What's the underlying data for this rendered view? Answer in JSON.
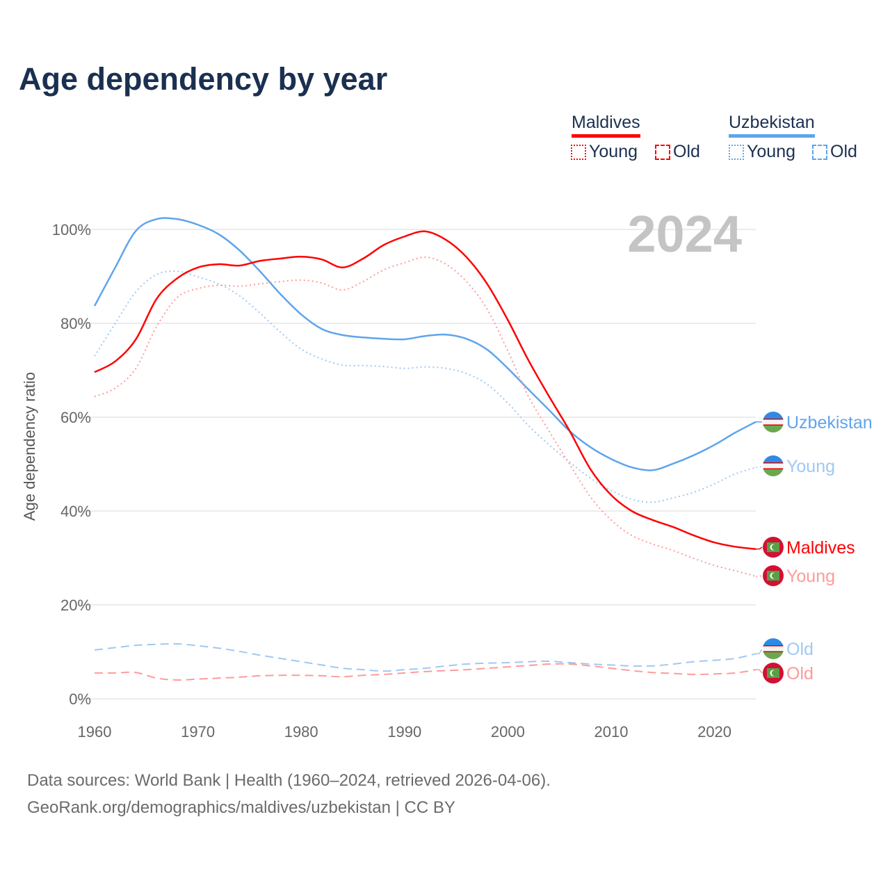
{
  "title": "Age dependency by year",
  "legend": {
    "countries": [
      {
        "name": "Maldives",
        "color": "#ff0000",
        "items": [
          "Young",
          "Old"
        ]
      },
      {
        "name": "Uzbekistan",
        "color": "#5fa4ec",
        "items": [
          "Young",
          "Old"
        ]
      }
    ]
  },
  "footer": {
    "line1": "Data sources: World Bank | Health (1960–2024, retrieved 2026-04-06).",
    "line2": "GeoRank.org/demographics/maldives/uzbekistan | CC BY"
  },
  "chart_data": {
    "type": "line",
    "title": "Age dependency by year",
    "year_label": "2024",
    "ylabel": "Age dependency ratio",
    "xlabel": "",
    "xlim": [
      1960,
      2024
    ],
    "ylim": [
      0,
      100
    ],
    "x_ticks": [
      "1960",
      "1970",
      "1980",
      "1990",
      "2000",
      "2010",
      "2020"
    ],
    "y_ticks": [
      "0%",
      "20%",
      "40%",
      "60%",
      "80%",
      "100%"
    ],
    "grid": true,
    "x": [
      1960,
      1962,
      1964,
      1966,
      1968,
      1970,
      1972,
      1974,
      1976,
      1978,
      1980,
      1982,
      1984,
      1986,
      1988,
      1990,
      1992,
      1994,
      1996,
      1998,
      2000,
      2002,
      2004,
      2006,
      2008,
      2010,
      2012,
      2014,
      2016,
      2018,
      2020,
      2022,
      2024
    ],
    "series": [
      {
        "name": "Uzbekistan",
        "end_label": "Uzbekistan",
        "country": "uz",
        "style": "solid",
        "color": "#5fa4ec",
        "values": [
          83.7,
          91.9,
          99.7,
          102.2,
          102.2,
          101.0,
          99.0,
          95.6,
          91.1,
          86.2,
          81.9,
          78.8,
          77.5,
          77.0,
          76.7,
          76.6,
          77.3,
          77.6,
          76.7,
          74.4,
          70.4,
          65.9,
          61.5,
          57.0,
          53.6,
          51.1,
          49.3,
          48.7,
          50.1,
          51.9,
          54.1,
          56.7,
          59.0
        ]
      },
      {
        "name": "Uzbekistan Young",
        "end_label": "Young",
        "country": "uz",
        "style": "dotted",
        "color": "#a0c8f3",
        "values": [
          73.0,
          80.0,
          86.7,
          90.4,
          91.1,
          89.9,
          88.4,
          85.9,
          82.2,
          78.1,
          74.5,
          72.4,
          71.1,
          71.0,
          70.8,
          70.4,
          70.7,
          70.4,
          69.3,
          67.0,
          63.0,
          58.2,
          54.1,
          50.4,
          47.0,
          44.4,
          42.5,
          41.9,
          42.8,
          44.0,
          45.8,
          47.9,
          49.3
        ]
      },
      {
        "name": "Maldives",
        "end_label": "Maldives",
        "country": "mv",
        "style": "solid",
        "color": "#ff0000",
        "values": [
          69.6,
          71.9,
          76.6,
          85.2,
          89.6,
          91.9,
          92.6,
          92.3,
          93.3,
          93.8,
          94.2,
          93.6,
          91.9,
          93.8,
          96.7,
          98.5,
          99.6,
          97.8,
          94.1,
          88.4,
          80.7,
          72.1,
          64.4,
          57.0,
          48.9,
          43.4,
          40.0,
          38.1,
          36.6,
          34.8,
          33.3,
          32.4,
          31.9
        ]
      },
      {
        "name": "Maldives Young",
        "end_label": "Young",
        "country": "mv",
        "style": "dotted",
        "color": "#ff9a9a",
        "values": [
          64.4,
          66.2,
          70.4,
          79.3,
          85.5,
          87.4,
          88.1,
          87.9,
          88.4,
          88.9,
          89.2,
          88.6,
          87.1,
          88.9,
          91.4,
          92.9,
          94.1,
          92.6,
          88.9,
          83.0,
          74.1,
          64.4,
          57.0,
          49.9,
          43.0,
          38.1,
          34.8,
          33.0,
          31.6,
          29.9,
          28.4,
          27.3,
          26.1
        ]
      },
      {
        "name": "Uzbekistan Old",
        "end_label": "Old",
        "country": "uz",
        "style": "dashed",
        "color": "#a0c8f3",
        "values": [
          10.4,
          10.9,
          11.4,
          11.6,
          11.7,
          11.3,
          10.8,
          10.1,
          9.3,
          8.6,
          7.9,
          7.2,
          6.5,
          6.2,
          5.9,
          6.2,
          6.5,
          7.0,
          7.4,
          7.6,
          7.7,
          7.9,
          8.0,
          7.7,
          7.4,
          7.2,
          7.0,
          7.0,
          7.4,
          7.9,
          8.2,
          8.6,
          9.6
        ]
      },
      {
        "name": "Maldives Old",
        "end_label": "Old",
        "country": "mv",
        "style": "dashed",
        "color": "#ff9a9a",
        "values": [
          5.5,
          5.5,
          5.6,
          4.4,
          4.0,
          4.2,
          4.4,
          4.6,
          4.9,
          5.0,
          5.0,
          4.9,
          4.7,
          5.0,
          5.2,
          5.5,
          5.8,
          6.0,
          6.2,
          6.5,
          6.8,
          7.1,
          7.4,
          7.4,
          7.0,
          6.5,
          6.0,
          5.6,
          5.4,
          5.2,
          5.3,
          5.5,
          6.2
        ]
      }
    ]
  }
}
